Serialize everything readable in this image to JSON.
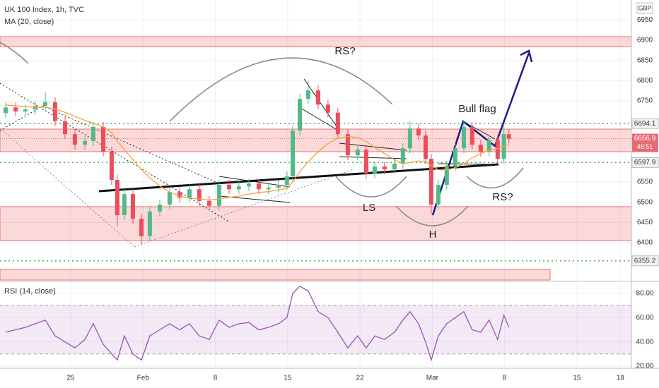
{
  "chart_data": {
    "type": "candlestick",
    "title": "UK 100 Index, 1h, TVC",
    "currency": "GBP",
    "x": [
      -4.5,
      -3.81,
      -3.13,
      -2.45,
      -1.76,
      -1.08,
      -0.39,
      0.29,
      0.98,
      1.56,
      2.25,
      2.83,
      3.22,
      3.71,
      4.3,
      4.89,
      5.47,
      6.16,
      6.84,
      7.53,
      8.21,
      8.89,
      9.58,
      10.26,
      10.95,
      11.63,
      12.32,
      13.0,
      13.68,
      14.37,
      14.95,
      15.35,
      15.84,
      16.42,
      17.11,
      17.79,
      18.47,
      19.16,
      19.84,
      20.43,
      21.02,
      21.7,
      22.39,
      22.97,
      23.46,
      24.05,
      24.54,
      24.93,
      25.42,
      26.0,
      26.59,
      27.18,
      27.76,
      28.35,
      28.93,
      29.52,
      29.95,
      30.3
    ],
    "open": [
      6720,
      6734,
      6724,
      6729,
      6738,
      6747,
      6700,
      6668,
      6642,
      6651,
      6686,
      6625,
      6555,
      6468,
      6520,
      6459,
      6416,
      6477,
      6494,
      6525,
      6511,
      6532,
      6503,
      6491,
      6543,
      6532,
      6539,
      6546,
      6532,
      6536,
      6543,
      6564,
      6677,
      6755,
      6776,
      6741,
      6721,
      6668,
      6616,
      6630,
      6571,
      6588,
      6581,
      6595,
      6633,
      6682,
      6665,
      6607,
      6494,
      6543,
      6590,
      6633,
      6686,
      6642,
      6625,
      6654,
      6607,
      6668
    ],
    "high": [
      6746,
      6746,
      6741,
      6750,
      6772,
      6759,
      6712,
      6680,
      6663,
      6698,
      6698,
      6637,
      6567,
      6532,
      6532,
      6471,
      6489,
      6506,
      6537,
      6537,
      6544,
      6544,
      6515,
      6555,
      6555,
      6551,
      6558,
      6558,
      6548,
      6555,
      6576,
      6689,
      6767,
      6800,
      6788,
      6753,
      6733,
      6680,
      6642,
      6642,
      6600,
      6600,
      6607,
      6645,
      6700,
      6694,
      6677,
      6619,
      6555,
      6602,
      6645,
      6700,
      6698,
      6654,
      6666,
      6666,
      6690,
      6680
    ],
    "low": [
      6708,
      6712,
      6712,
      6717,
      6726,
      6688,
      6656,
      6630,
      6630,
      6639,
      6613,
      6543,
      6440,
      6456,
      6447,
      6395,
      6404,
      6465,
      6482,
      6499,
      6499,
      6491,
      6479,
      6479,
      6520,
      6520,
      6527,
      6520,
      6520,
      6524,
      6531,
      6552,
      6665,
      6743,
      6729,
      6709,
      6656,
      6604,
      6604,
      6559,
      6559,
      6569,
      6569,
      6583,
      6621,
      6653,
      6595,
      6470,
      6482,
      6531,
      6578,
      6621,
      6630,
      6613,
      6613,
      6595,
      6595,
      6645
    ],
    "close": [
      6734,
      6724,
      6729,
      6738,
      6747,
      6700,
      6668,
      6642,
      6651,
      6686,
      6625,
      6555,
      6468,
      6520,
      6459,
      6416,
      6477,
      6494,
      6525,
      6511,
      6532,
      6503,
      6491,
      6543,
      6532,
      6539,
      6546,
      6532,
      6536,
      6543,
      6564,
      6677,
      6755,
      6776,
      6741,
      6721,
      6668,
      6616,
      6630,
      6571,
      6588,
      6581,
      6595,
      6633,
      6682,
      6665,
      6607,
      6494,
      6543,
      6590,
      6633,
      6686,
      6642,
      6625,
      6654,
      6607,
      6668,
      6656.9
    ],
    "up_color": "#53b987",
    "down_color": "#eb4d5c",
    "series": [
      {
        "name": "MA (20, close)",
        "color": "#f5a040",
        "values": [
          6740,
          6738,
          6736,
          6734,
          6735,
          6730,
          6722,
          6712,
          6702,
          6695,
          6686,
          6672,
          6650,
          6630,
          6605,
          6580,
          6560,
          6540,
          6525,
          6515,
          6510,
          6508,
          6505,
          6508,
          6512,
          6515,
          6520,
          6524,
          6526,
          6530,
          6535,
          6550,
          6575,
          6600,
          6625,
          6645,
          6658,
          6662,
          6660,
          6650,
          6635,
          6620,
          6605,
          6595,
          6598,
          6602,
          6600,
          6590,
          6580,
          6580,
          6585,
          6595,
          6610,
          6620,
          6628,
          6632,
          6638,
          6642
        ]
      },
      {
        "name": "RSI (14, close)",
        "color": "#9c4fb8",
        "axis": "y2",
        "band": [
          30,
          70
        ],
        "values": [
          48,
          50,
          52,
          55,
          58,
          45,
          40,
          35,
          42,
          55,
          38,
          30,
          25,
          45,
          30,
          25,
          45,
          50,
          55,
          50,
          55,
          45,
          42,
          58,
          52,
          55,
          56,
          50,
          52,
          55,
          60,
          80,
          86,
          82,
          65,
          60,
          48,
          35,
          45,
          35,
          45,
          42,
          48,
          58,
          65,
          55,
          40,
          25,
          45,
          55,
          60,
          65,
          50,
          48,
          58,
          42,
          62,
          52
        ]
      }
    ],
    "xlim": [
      -4.89,
      38.77
    ],
    "xticks": [
      {
        "value": 0,
        "label": "25"
      },
      {
        "value": 5,
        "label": "Feb"
      },
      {
        "value": 10,
        "label": "8"
      },
      {
        "value": 15,
        "label": "15"
      },
      {
        "value": 20,
        "label": "22"
      },
      {
        "value": 25,
        "label": "Mar"
      },
      {
        "value": 30,
        "label": "8"
      },
      {
        "value": 35,
        "label": "15"
      },
      {
        "value": 38,
        "label": "18"
      }
    ],
    "ylim": [
      6307.7,
      6999.3
    ],
    "yticks": [
      6400,
      6450,
      6500,
      6550,
      6750,
      6800,
      6850,
      6900,
      6950
    ],
    "y2lim": [
      19.4,
      89.3
    ],
    "y2ticks": [
      {
        "value": 20,
        "label": "20.00"
      },
      {
        "value": 40,
        "label": "40.00"
      },
      {
        "value": 60,
        "label": "60.00"
      },
      {
        "value": 80,
        "label": "80.00"
      }
    ],
    "price_levels": [
      6694.1,
      6597.9,
      6355.2
    ],
    "last_price": 6656.9,
    "countdown": "48:51",
    "annotations": [
      "RS?",
      "Bull flag",
      "LS",
      "H",
      "RS?"
    ],
    "grid": true
  }
}
